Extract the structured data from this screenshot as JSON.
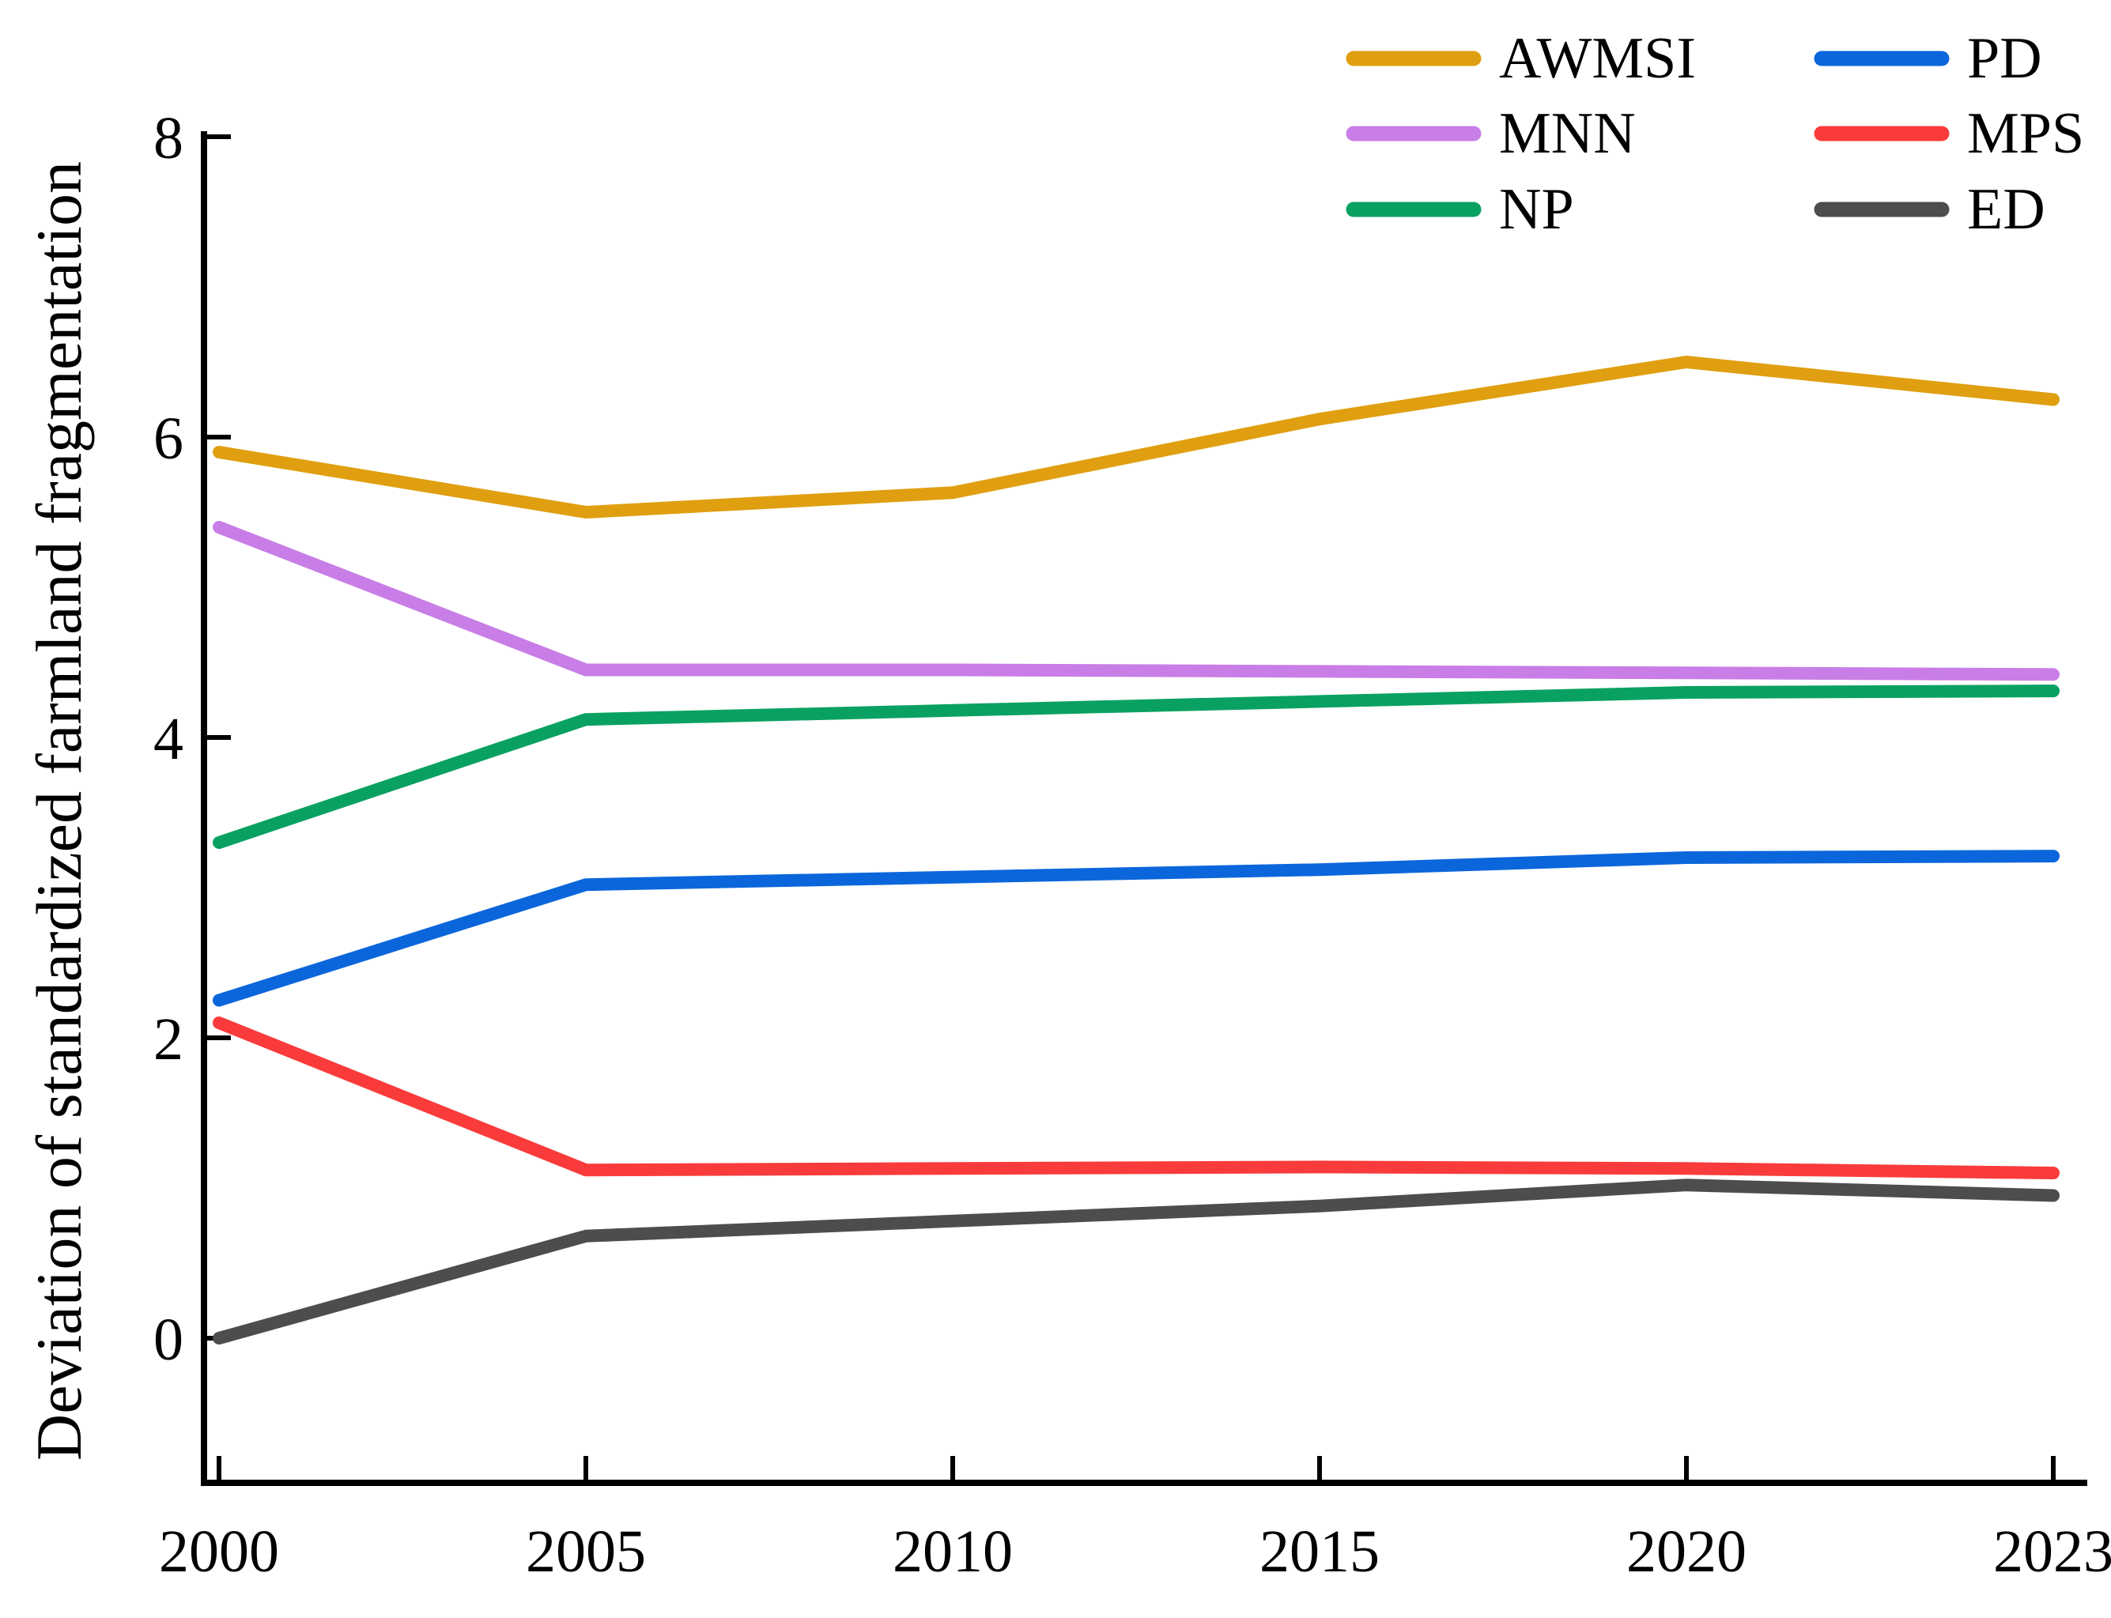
{
  "chart_data": {
    "type": "line",
    "title": "",
    "xlabel": "",
    "ylabel": "Deviation of standardized farmland fragmentation",
    "categories": [
      "2000",
      "2005",
      "2010",
      "2015",
      "2020",
      "2023"
    ],
    "yticks": [
      "0",
      "2",
      "4",
      "6",
      "8"
    ],
    "ytick_values": [
      0,
      2,
      4,
      6,
      8
    ],
    "ylim": [
      -1,
      8
    ],
    "grid": false,
    "background": "#ffffff",
    "axis_color": "#000000",
    "legend_position": "top-right",
    "legend_columns": [
      [
        "AWMSI",
        "MNN",
        "NP"
      ],
      [
        "PD",
        "MPS",
        "ED"
      ]
    ],
    "series": [
      {
        "name": "AWMSI",
        "color": "#DF9F10",
        "values": [
          5.9,
          5.5,
          5.63,
          6.12,
          6.5,
          6.25
        ]
      },
      {
        "name": "MNN",
        "color": "#C87EE6",
        "values": [
          5.4,
          4.45,
          4.45,
          4.44,
          4.43,
          4.42
        ]
      },
      {
        "name": "NP",
        "color": "#09A161",
        "values": [
          3.3,
          4.12,
          4.18,
          4.24,
          4.3,
          4.31
        ]
      },
      {
        "name": "PD",
        "color": "#0B66DB",
        "values": [
          2.25,
          3.02,
          3.07,
          3.12,
          3.2,
          3.21
        ]
      },
      {
        "name": "MPS",
        "color": "#F93B3B",
        "values": [
          2.1,
          1.12,
          1.13,
          1.14,
          1.13,
          1.1
        ]
      },
      {
        "name": "ED",
        "color": "#4D4D4D",
        "values": [
          0.0,
          0.68,
          0.78,
          0.88,
          1.02,
          0.95
        ]
      }
    ]
  }
}
